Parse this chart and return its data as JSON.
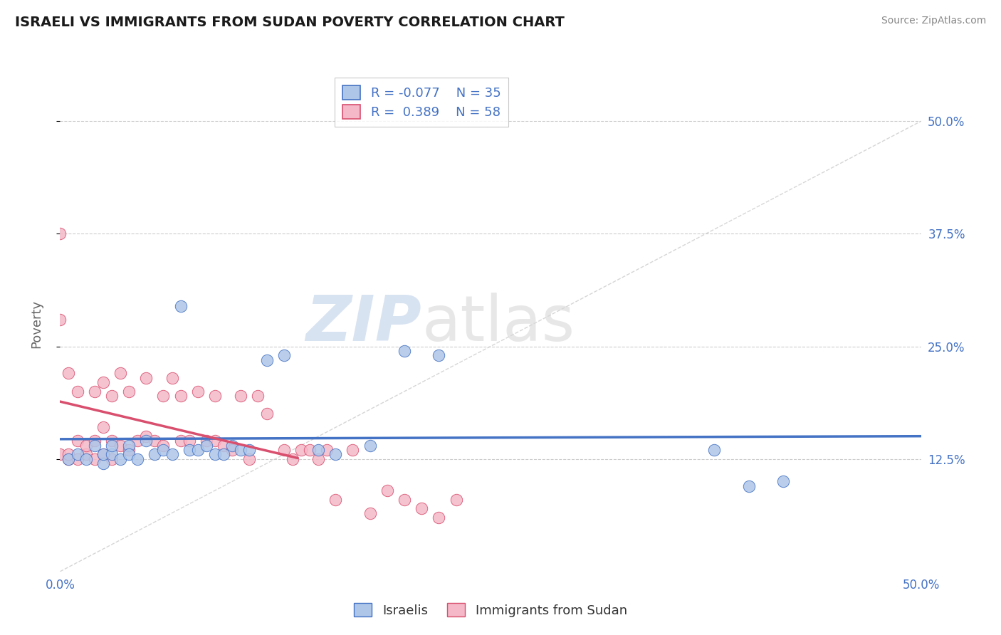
{
  "title": "ISRAELI VS IMMIGRANTS FROM SUDAN POVERTY CORRELATION CHART",
  "source": "Source: ZipAtlas.com",
  "ylabel": "Poverty",
  "ytick_labels": [
    "12.5%",
    "25.0%",
    "37.5%",
    "50.0%"
  ],
  "ytick_vals": [
    0.125,
    0.25,
    0.375,
    0.5
  ],
  "xrange": [
    0.0,
    0.5
  ],
  "yrange": [
    0.0,
    0.55
  ],
  "color_israeli": "#aec6e8",
  "color_sudan": "#f4b8c8",
  "line_color_israeli": "#4472c4",
  "line_color_sudan": "#d94f6e",
  "legend_label1": "R = -0.077    N = 35",
  "legend_label2": "R =  0.389    N = 58",
  "bottom_legend1": "Israelis",
  "bottom_legend2": "Immigrants from Sudan",
  "israelis_x": [
    0.005,
    0.01,
    0.015,
    0.02,
    0.025,
    0.025,
    0.03,
    0.03,
    0.035,
    0.04,
    0.04,
    0.045,
    0.05,
    0.055,
    0.06,
    0.065,
    0.07,
    0.075,
    0.08,
    0.085,
    0.09,
    0.095,
    0.1,
    0.105,
    0.11,
    0.12,
    0.13,
    0.15,
    0.16,
    0.18,
    0.2,
    0.22,
    0.38,
    0.4,
    0.42
  ],
  "israelis_y": [
    0.125,
    0.13,
    0.125,
    0.14,
    0.12,
    0.13,
    0.13,
    0.14,
    0.125,
    0.14,
    0.13,
    0.125,
    0.145,
    0.13,
    0.135,
    0.13,
    0.295,
    0.135,
    0.135,
    0.14,
    0.13,
    0.13,
    0.14,
    0.135,
    0.135,
    0.235,
    0.24,
    0.135,
    0.13,
    0.14,
    0.245,
    0.24,
    0.135,
    0.095,
    0.1
  ],
  "sudan_x": [
    0.0,
    0.0,
    0.0,
    0.005,
    0.005,
    0.005,
    0.01,
    0.01,
    0.01,
    0.015,
    0.015,
    0.02,
    0.02,
    0.02,
    0.025,
    0.025,
    0.025,
    0.03,
    0.03,
    0.03,
    0.035,
    0.035,
    0.04,
    0.04,
    0.045,
    0.05,
    0.05,
    0.055,
    0.06,
    0.06,
    0.065,
    0.07,
    0.07,
    0.075,
    0.08,
    0.085,
    0.09,
    0.09,
    0.095,
    0.1,
    0.105,
    0.11,
    0.115,
    0.12,
    0.13,
    0.135,
    0.14,
    0.145,
    0.15,
    0.155,
    0.16,
    0.17,
    0.18,
    0.19,
    0.2,
    0.21,
    0.22,
    0.23
  ],
  "sudan_y": [
    0.13,
    0.375,
    0.28,
    0.125,
    0.13,
    0.22,
    0.125,
    0.145,
    0.2,
    0.13,
    0.14,
    0.125,
    0.145,
    0.2,
    0.13,
    0.16,
    0.21,
    0.125,
    0.145,
    0.195,
    0.14,
    0.22,
    0.135,
    0.2,
    0.145,
    0.15,
    0.215,
    0.145,
    0.14,
    0.195,
    0.215,
    0.145,
    0.195,
    0.145,
    0.2,
    0.145,
    0.145,
    0.195,
    0.14,
    0.135,
    0.195,
    0.125,
    0.195,
    0.175,
    0.135,
    0.125,
    0.135,
    0.135,
    0.125,
    0.135,
    0.08,
    0.135,
    0.065,
    0.09,
    0.08,
    0.07,
    0.06,
    0.08
  ]
}
